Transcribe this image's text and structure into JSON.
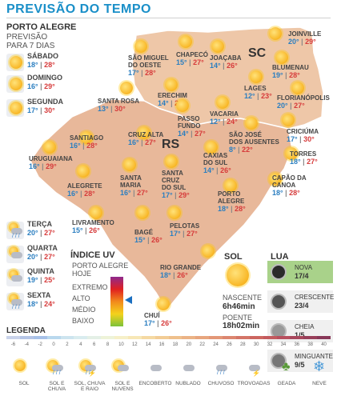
{
  "header": {
    "title": "PREVISÃO DO TEMPO",
    "city": "PORTO ALEGRE",
    "subtitle_line1": "PREVISÃO",
    "subtitle_line2": "PARA 7 DIAS"
  },
  "forecast": [
    {
      "day": "SÁBADO",
      "min": "18°",
      "max": "28°",
      "icon": "sun-icon"
    },
    {
      "day": "DOMINGO",
      "min": "16°",
      "max": "29°",
      "icon": "sun-icon"
    },
    {
      "day": "SEGUNDA",
      "min": "17°",
      "max": "30°",
      "icon": "sun-icon"
    },
    {
      "day": "TERÇA",
      "min": "20°",
      "max": "27°",
      "icon": "rain-icon"
    },
    {
      "day": "QUARTA",
      "min": "20°",
      "max": "27°",
      "icon": "sun-cloud-icon"
    },
    {
      "day": "QUINTA",
      "min": "19°",
      "max": "25°",
      "icon": "sun-cloud-icon"
    },
    {
      "day": "SEXTA",
      "min": "18°",
      "max": "24°",
      "icon": "rain-icon"
    }
  ],
  "map": {
    "state_sc": "SC",
    "state_rs": "RS",
    "cities": [
      {
        "name": "JOINVILLE",
        "min": "20°",
        "max": "29°"
      },
      {
        "name": "CHAPECÓ",
        "min": "15°",
        "max": "27°"
      },
      {
        "name": "SÃO MIGUEL\nDO OESTE",
        "min": "17°",
        "max": "28°"
      },
      {
        "name": "JOAÇABA",
        "min": "14°",
        "max": "26°"
      },
      {
        "name": "BLUMENAU",
        "min": "19°",
        "max": "28°"
      },
      {
        "name": "FLORIANÓPOLIS",
        "min": "20°",
        "max": "27°"
      },
      {
        "name": "LAGES",
        "min": "12°",
        "max": "23°"
      },
      {
        "name": "ERECHIM",
        "min": "14°",
        "max": "27°"
      },
      {
        "name": "SANTA ROSA",
        "min": "13°",
        "max": "30°"
      },
      {
        "name": "VACARIA",
        "min": "12°",
        "max": "24°"
      },
      {
        "name": "PASSO\nFUNDO",
        "min": "14°",
        "max": "27°"
      },
      {
        "name": "CRICIÚMA",
        "min": "17°",
        "max": "30°"
      },
      {
        "name": "SANTIAGO",
        "min": "16°",
        "max": "28°"
      },
      {
        "name": "CRUZ ALTA",
        "min": "16°",
        "max": "27°"
      },
      {
        "name": "SÃO JOSÉ\nDOS AUSENTES",
        "min": "8°",
        "max": "22°"
      },
      {
        "name": "TORRES",
        "min": "18°",
        "max": "27°"
      },
      {
        "name": "URUGUAIANA",
        "min": "16°",
        "max": "29°"
      },
      {
        "name": "CAXIAS\nDO SUL",
        "min": "14°",
        "max": "26°"
      },
      {
        "name": "CAPÃO DA\nCANOA",
        "min": "18°",
        "max": "28°"
      },
      {
        "name": "ALEGRETE",
        "min": "16°",
        "max": "28°"
      },
      {
        "name": "SANTA\nMARIA",
        "min": "16°",
        "max": "27°"
      },
      {
        "name": "SANTA\nCRUZ\nDO SUL",
        "min": "17°",
        "max": "29°"
      },
      {
        "name": "PORTO\nALEGRE",
        "min": "18°",
        "max": "28°"
      },
      {
        "name": "LIVRAMENTO",
        "min": "15°",
        "max": "26°"
      },
      {
        "name": "BAGÉ",
        "min": "15°",
        "max": "26°"
      },
      {
        "name": "PELOTAS",
        "min": "17°",
        "max": "27°"
      },
      {
        "name": "RIO GRANDE",
        "min": "18°",
        "max": "26°"
      },
      {
        "name": "CHUÍ",
        "min": "17°",
        "max": "26°"
      }
    ]
  },
  "uv": {
    "title": "ÍNDICE UV",
    "city": "PORTO ALEGRE",
    "when": "HOJE",
    "levels": [
      "EXTREMO",
      "ALTO",
      "MÉDIO",
      "BAIXO"
    ],
    "current": "ALTO"
  },
  "sun": {
    "title": "SOL",
    "sunrise_label": "NASCENTE",
    "sunrise": "6h46min",
    "sunset_label": "POENTE",
    "sunset": "18h02min"
  },
  "moon": {
    "title": "LUA",
    "phases": [
      {
        "name": "NOVA",
        "date": "17/4",
        "active": true
      },
      {
        "name": "CRESCENTE",
        "date": "23/4",
        "active": false
      },
      {
        "name": "CHEIA",
        "date": "1/5",
        "active": false
      },
      {
        "name": "MINGUANTE",
        "date": "9/5",
        "active": false
      }
    ]
  },
  "legend": {
    "title": "LEGENDA",
    "scale": [
      "-6",
      "-4",
      "-2",
      "0",
      "2",
      "4",
      "6",
      "8",
      "10",
      "12",
      "14",
      "16",
      "18",
      "20",
      "22",
      "24",
      "26",
      "28",
      "30",
      "32",
      "34",
      "36",
      "38",
      "40"
    ],
    "icons": [
      "SOL",
      "SOL E\nCHUVA",
      "SOL, CHUVA\nE RAIO",
      "SOL E\nNUVENS",
      "ENCOBERTO",
      "NUBLADO",
      "CHUVOSO",
      "TROVOADAS",
      "GEADA",
      "NEVE"
    ]
  },
  "colors": {
    "title": "#1a8fc8",
    "min_temp": "#2a7ec0",
    "max_temp": "#d63a3a",
    "map_rs": "#e8b89a",
    "map_sc": "#eec7a8"
  }
}
